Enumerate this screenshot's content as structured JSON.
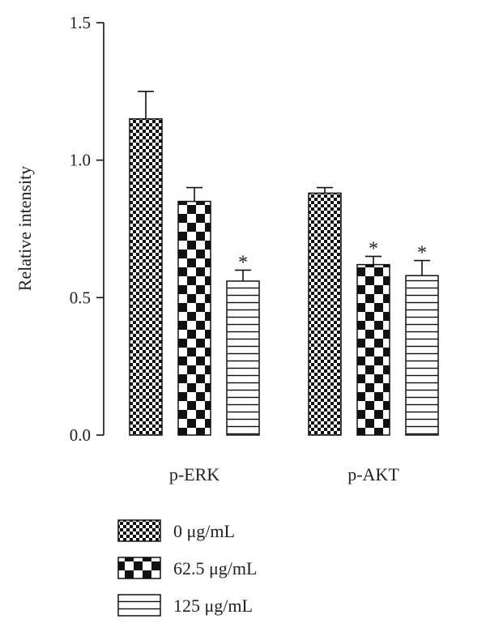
{
  "chart_data": {
    "type": "bar",
    "title": "",
    "xlabel": "",
    "ylabel": "Relative intensity",
    "ylim": [
      0,
      1.5
    ],
    "yticks": [
      "0.0",
      "0.5",
      "1.0",
      "1.5"
    ],
    "categories": [
      "p-ERK",
      "p-AKT"
    ],
    "series": [
      {
        "name": "0 μg/mL",
        "values": [
          1.15,
          0.88
        ],
        "errors": [
          0.1,
          0.02
        ],
        "significance": [
          "",
          ""
        ],
        "pattern": "fine-checker"
      },
      {
        "name": "62.5 μg/mL",
        "values": [
          0.85,
          0.62
        ],
        "errors": [
          0.05,
          0.03
        ],
        "significance": [
          "",
          "*"
        ],
        "pattern": "coarse-checker"
      },
      {
        "name": "125 μg/mL",
        "values": [
          0.56,
          0.58
        ],
        "errors": [
          0.04,
          0.055
        ],
        "significance": [
          "*",
          "*"
        ],
        "pattern": "horizontal-lines"
      }
    ],
    "grid": false,
    "legend_position": "bottom-left"
  }
}
